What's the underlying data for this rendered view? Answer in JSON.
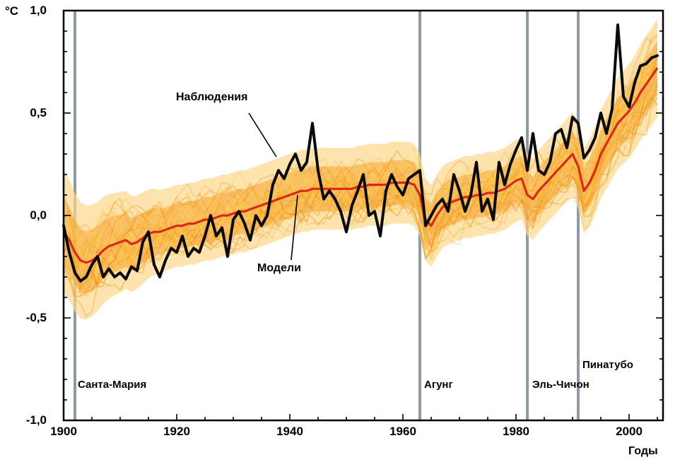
{
  "axes": {
    "y_unit": "°C",
    "x_title": "Годы",
    "y_ticks": [
      {
        "value": 1.0,
        "label": "1,0"
      },
      {
        "value": 0.5,
        "label": "0,5"
      },
      {
        "value": 0.0,
        "label": "0,0"
      },
      {
        "value": -0.5,
        "label": "-0,5"
      },
      {
        "value": -1.0,
        "label": "-1,0"
      }
    ],
    "x_ticks": [
      {
        "value": 1900,
        "label": "1900"
      },
      {
        "value": 1920,
        "label": "1920"
      },
      {
        "value": 1940,
        "label": "1940"
      },
      {
        "value": 1960,
        "label": "1960"
      },
      {
        "value": 1980,
        "label": "1980"
      },
      {
        "value": 2000,
        "label": "2000"
      }
    ]
  },
  "annotations": {
    "observations": "Наблюдения",
    "models": "Модели"
  },
  "eruptions": [
    {
      "year": 1902,
      "label": "Санта-Мария"
    },
    {
      "year": 1963,
      "label": "Агунг"
    },
    {
      "year": 1982,
      "label": "Эль-Чичон"
    },
    {
      "year": 1991,
      "label": "Пинатубо"
    }
  ],
  "colors": {
    "observations": "#0a0a0a",
    "model": "#da291c",
    "band_outer": "#fcd98b",
    "band_inner": "#f7a93c",
    "ensemble_palette": [
      "#f59b20",
      "#fbc02d",
      "#ef8b0a",
      "#ffd54f"
    ],
    "eruption_line": "#8d9aa3",
    "frame": "#000000"
  },
  "chart_data": {
    "type": "line",
    "title": "",
    "xlabel": "Годы",
    "ylabel": "°C",
    "xlim": [
      1900,
      2006
    ],
    "ylim": [
      -1.0,
      1.0
    ],
    "grid": false,
    "legend_position": "annotated-on-plot",
    "x": [
      1900,
      1901,
      1902,
      1903,
      1904,
      1905,
      1906,
      1907,
      1908,
      1909,
      1910,
      1911,
      1912,
      1913,
      1914,
      1915,
      1916,
      1917,
      1918,
      1919,
      1920,
      1921,
      1922,
      1923,
      1924,
      1925,
      1926,
      1927,
      1928,
      1929,
      1930,
      1931,
      1932,
      1933,
      1934,
      1935,
      1936,
      1937,
      1938,
      1939,
      1940,
      1941,
      1942,
      1943,
      1944,
      1945,
      1946,
      1947,
      1948,
      1949,
      1950,
      1951,
      1952,
      1953,
      1954,
      1955,
      1956,
      1957,
      1958,
      1959,
      1960,
      1961,
      1962,
      1963,
      1964,
      1965,
      1966,
      1967,
      1968,
      1969,
      1970,
      1971,
      1972,
      1973,
      1974,
      1975,
      1976,
      1977,
      1978,
      1979,
      1980,
      1981,
      1982,
      1983,
      1984,
      1985,
      1986,
      1987,
      1988,
      1989,
      1990,
      1991,
      1992,
      1993,
      1994,
      1995,
      1996,
      1997,
      1998,
      1999,
      2000,
      2001,
      2002,
      2003,
      2004,
      2005
    ],
    "series": [
      {
        "name": "Наблюдения",
        "values": [
          -0.05,
          -0.18,
          -0.28,
          -0.32,
          -0.3,
          -0.24,
          -0.2,
          -0.3,
          -0.26,
          -0.3,
          -0.28,
          -0.31,
          -0.25,
          -0.27,
          -0.13,
          -0.08,
          -0.24,
          -0.3,
          -0.22,
          -0.16,
          -0.18,
          -0.1,
          -0.2,
          -0.16,
          -0.18,
          -0.1,
          0.0,
          -0.1,
          -0.06,
          -0.2,
          -0.02,
          0.02,
          -0.04,
          -0.12,
          0.0,
          -0.05,
          0.0,
          0.15,
          0.22,
          0.18,
          0.25,
          0.3,
          0.22,
          0.26,
          0.45,
          0.22,
          0.08,
          0.12,
          0.08,
          0.02,
          -0.08,
          0.05,
          0.12,
          0.2,
          0.0,
          0.02,
          -0.1,
          0.12,
          0.2,
          0.14,
          0.1,
          0.18,
          0.2,
          0.22,
          -0.05,
          0.0,
          0.05,
          0.08,
          0.02,
          0.2,
          0.12,
          0.02,
          0.1,
          0.26,
          0.02,
          0.08,
          -0.02,
          0.26,
          0.15,
          0.25,
          0.32,
          0.38,
          0.22,
          0.4,
          0.22,
          0.2,
          0.26,
          0.4,
          0.42,
          0.33,
          0.48,
          0.45,
          0.28,
          0.32,
          0.38,
          0.5,
          0.4,
          0.52,
          0.93,
          0.58,
          0.53,
          0.65,
          0.73,
          0.74,
          0.77,
          0.78
        ]
      },
      {
        "name": "Модели",
        "values": [
          -0.08,
          -0.12,
          -0.18,
          -0.22,
          -0.23,
          -0.22,
          -0.2,
          -0.17,
          -0.15,
          -0.14,
          -0.13,
          -0.12,
          -0.14,
          -0.13,
          -0.11,
          -0.09,
          -0.08,
          -0.08,
          -0.07,
          -0.06,
          -0.05,
          -0.05,
          -0.04,
          -0.04,
          -0.03,
          -0.02,
          -0.02,
          -0.01,
          0.0,
          0.0,
          0.01,
          0.02,
          0.02,
          0.03,
          0.04,
          0.05,
          0.06,
          0.07,
          0.08,
          0.09,
          0.1,
          0.11,
          0.12,
          0.12,
          0.13,
          0.13,
          0.13,
          0.13,
          0.13,
          0.13,
          0.13,
          0.13,
          0.14,
          0.14,
          0.15,
          0.15,
          0.15,
          0.15,
          0.16,
          0.16,
          0.16,
          0.16,
          0.15,
          0.1,
          -0.02,
          -0.05,
          0.0,
          0.04,
          0.06,
          0.07,
          0.08,
          0.09,
          0.09,
          0.1,
          0.1,
          0.11,
          0.11,
          0.12,
          0.13,
          0.15,
          0.17,
          0.18,
          0.1,
          0.08,
          0.12,
          0.15,
          0.18,
          0.21,
          0.24,
          0.27,
          0.3,
          0.24,
          0.12,
          0.16,
          0.22,
          0.3,
          0.35,
          0.4,
          0.45,
          0.48,
          0.51,
          0.55,
          0.6,
          0.64,
          0.68,
          0.72
        ]
      }
    ],
    "band_halfwidth": 0.22,
    "ensemble_members": 40
  }
}
